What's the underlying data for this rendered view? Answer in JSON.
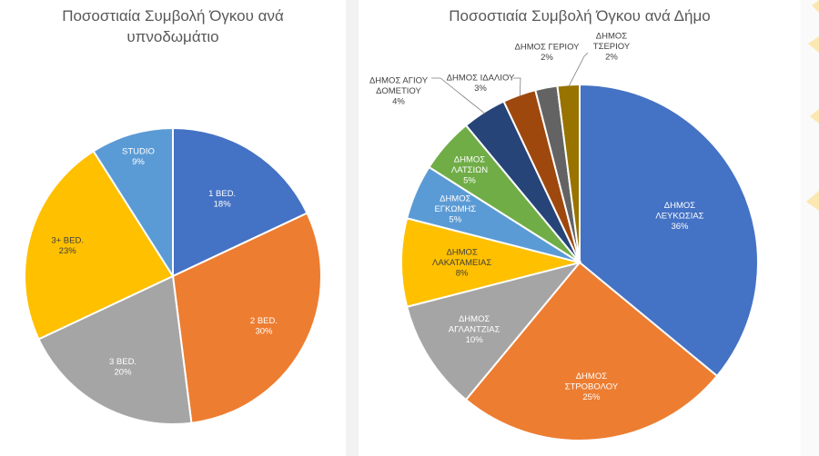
{
  "chart_data": [
    {
      "type": "pie",
      "title_lines": [
        "Ποσοστιαία Συμβολή Όγκου ανά",
        "υπνοδωμάτιο"
      ],
      "slices": [
        {
          "label": "1 BED.",
          "value": 18,
          "pct": "18%",
          "color": "#4472C4"
        },
        {
          "label": "2 BED.",
          "value": 30,
          "pct": "30%",
          "color": "#ED7D31"
        },
        {
          "label": "3 BED.",
          "value": 20,
          "pct": "20%",
          "color": "#A5A5A5"
        },
        {
          "label": "3+ BED.",
          "value": 23,
          "pct": "23%",
          "color": "#FFC000"
        },
        {
          "label": "STUDIO",
          "value": 9,
          "pct": "9%",
          "color": "#5B9BD5"
        }
      ]
    },
    {
      "type": "pie",
      "title_lines": [
        "Ποσοστιαία Συμβολή Όγκου ανά Δήμο"
      ],
      "slices": [
        {
          "label_lines": [
            "ΔΗΜΟΣ",
            "ΛΕΥΚΩΣΙΑΣ"
          ],
          "value": 36,
          "pct": "36%",
          "color": "#4472C4"
        },
        {
          "label_lines": [
            "ΔΗΜΟΣ",
            "ΣΤΡΟΒΟΛΟΥ"
          ],
          "value": 25,
          "pct": "25%",
          "color": "#ED7D31"
        },
        {
          "label_lines": [
            "ΔΗΜΟΣ",
            "ΑΓΛΑΝΤΖΙΑΣ"
          ],
          "value": 10,
          "pct": "10%",
          "color": "#A5A5A5"
        },
        {
          "label_lines": [
            "ΔΗΜΟΣ",
            "ΛΑΚΑΤΑΜΕΙΑΣ"
          ],
          "value": 8,
          "pct": "8%",
          "color": "#FFC000"
        },
        {
          "label_lines": [
            "ΔΗΜΟΣ",
            "ΕΓΚΩΜΗΣ"
          ],
          "value": 5,
          "pct": "5%",
          "color": "#5B9BD5"
        },
        {
          "label_lines": [
            "ΔΗΜΟΣ",
            "ΛΑΤΣΙΩΝ"
          ],
          "value": 5,
          "pct": "5%",
          "color": "#70AD47"
        },
        {
          "label_lines": [
            "ΔΗΜΟΣ ΑΓΙΟΥ",
            "ΔΟΜΕΤΙΟΥ"
          ],
          "value": 4,
          "pct": "4%",
          "color": "#264478"
        },
        {
          "label_lines": [
            "ΔΗΜΟΣ ΙΔΑΛΙΟΥ"
          ],
          "value": 3,
          "pct": "3%",
          "color": "#9E480E"
        },
        {
          "label_lines": [
            "ΔΗΜΟΣ ΓΕΡΙΟΥ"
          ],
          "value": 2,
          "pct": "2%",
          "color": "#636363"
        },
        {
          "label_lines": [
            "ΔΗΜΟΣ",
            "ΤΣΕΡΙΟΥ"
          ],
          "value": 2,
          "pct": "2%",
          "color": "#997300"
        }
      ]
    }
  ]
}
